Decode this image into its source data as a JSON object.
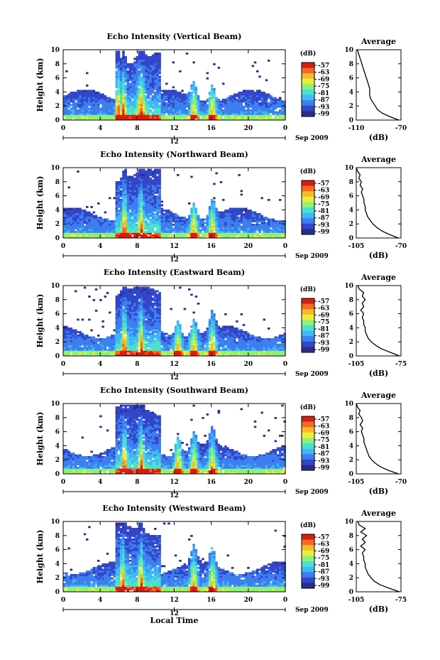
{
  "figure": {
    "xlabel_bottom": "Local Time",
    "date_label": "Sep 2009",
    "colorbar_unit": "(dB)",
    "colormap": [
      "#2a2e86",
      "#3346c9",
      "#3d7ff0",
      "#41b8f4",
      "#4be0d0",
      "#8ef07a",
      "#e8f03c",
      "#f7b82a",
      "#f56a1e",
      "#d61e12"
    ],
    "no_data_color": "#ffffff"
  },
  "chart_data": [
    {
      "type": "heatmap",
      "title": "Echo Intensity (Vertical Beam)",
      "ylabel": "Height (km)",
      "xlim": [
        0,
        24
      ],
      "ylim": [
        0,
        10
      ],
      "x_ticks": [
        "0",
        "4",
        "8",
        "12",
        "16",
        "20",
        "0"
      ],
      "y_ticks": [
        "0",
        "2",
        "4",
        "6",
        "8",
        "10"
      ],
      "secondary_x_label": "12",
      "colorbar_ticks": [
        "-57",
        "-63",
        "-69",
        "-75",
        "-81",
        "-87",
        "-93",
        "-99"
      ],
      "profile": {
        "title": "Average",
        "xlabel": "(dB)",
        "xlim": [
          -110,
          -70
        ],
        "x_ticks": [
          "-110",
          "-70"
        ],
        "heights": [
          0,
          0.5,
          1,
          1.5,
          2,
          2.5,
          3,
          3.5,
          4,
          4.5,
          5,
          5.5,
          6,
          6.5,
          7,
          7.5,
          8,
          8.5,
          9,
          9.5,
          10
        ],
        "values": [
          -72,
          -80,
          -87,
          -91,
          -93,
          -95,
          -97,
          -98,
          -98,
          -98,
          -99,
          -100,
          -101,
          -102,
          -103,
          -104,
          -105,
          -106,
          -107,
          -108,
          -109
        ]
      },
      "peaks": [
        5.8,
        6.4,
        8.3,
        14,
        16
      ]
    },
    {
      "type": "heatmap",
      "title": "Echo Intensity (Northward Beam)",
      "ylabel": "Height (km)",
      "xlim": [
        0,
        24
      ],
      "ylim": [
        0,
        10
      ],
      "x_ticks": [
        "0",
        "4",
        "8",
        "12",
        "16",
        "20",
        "0"
      ],
      "y_ticks": [
        "0",
        "2",
        "4",
        "6",
        "8",
        "10"
      ],
      "secondary_x_label": "12",
      "colorbar_ticks": [
        "-57",
        "-63",
        "-69",
        "-75",
        "-81",
        "-87",
        "-93",
        "-99"
      ],
      "profile": {
        "title": "Average",
        "xlabel": "(dB)",
        "xlim": [
          -105,
          -70
        ],
        "x_ticks": [
          "-105",
          "-70"
        ],
        "heights": [
          0,
          0.5,
          1,
          1.5,
          2,
          2.5,
          3,
          3.5,
          4,
          4.5,
          5,
          5.5,
          6,
          6.5,
          7,
          7.5,
          8,
          8.5,
          9,
          9.5,
          10
        ],
        "values": [
          -72,
          -79,
          -85,
          -89,
          -92,
          -94,
          -96,
          -97,
          -98,
          -98,
          -99,
          -99,
          -100,
          -101,
          -100,
          -102,
          -101,
          -103,
          -102,
          -104,
          -105
        ]
      },
      "peaks": [
        6.5,
        8.3,
        14,
        16
      ]
    },
    {
      "type": "heatmap",
      "title": "Echo Intensity (Eastward Beam)",
      "ylabel": "Height (km)",
      "xlim": [
        0,
        24
      ],
      "ylim": [
        0,
        10
      ],
      "x_ticks": [
        "0",
        "4",
        "8",
        "12",
        "16",
        "20",
        "0"
      ],
      "y_ticks": [
        "0",
        "2",
        "4",
        "6",
        "8",
        "10"
      ],
      "secondary_x_label": "12",
      "colorbar_ticks": [
        "-57",
        "-63",
        "-69",
        "-75",
        "-81",
        "-87",
        "-93",
        "-99"
      ],
      "profile": {
        "title": "Average",
        "xlabel": "(dB)",
        "xlim": [
          -105,
          -75
        ],
        "x_ticks": [
          "-105",
          "-75"
        ],
        "heights": [
          0,
          0.5,
          1,
          1.5,
          2,
          2.5,
          3,
          3.5,
          4,
          4.5,
          5,
          5.5,
          6,
          6.5,
          7,
          7.5,
          8,
          8.5,
          9,
          9.5,
          10
        ],
        "values": [
          -76,
          -82,
          -88,
          -92,
          -95,
          -97,
          -98,
          -99,
          -99,
          -100,
          -100,
          -101,
          -100,
          -102,
          -100,
          -101,
          -99,
          -101,
          -100,
          -103,
          -104
        ]
      },
      "peaks": [
        6.5,
        8.3,
        12.3,
        14,
        16
      ]
    },
    {
      "type": "heatmap",
      "title": "Echo Intensity (Southward Beam)",
      "ylabel": "Height (km)",
      "xlim": [
        0,
        24
      ],
      "ylim": [
        0,
        10
      ],
      "x_ticks": [
        "0",
        "4",
        "8",
        "12",
        "16",
        "20",
        "0"
      ],
      "y_ticks": [
        "0",
        "2",
        "4",
        "6",
        "8",
        "10"
      ],
      "secondary_x_label": "12",
      "colorbar_ticks": [
        "-57",
        "-63",
        "-69",
        "-75",
        "-81",
        "-87",
        "-93",
        "-99"
      ],
      "profile": {
        "title": "Average",
        "xlabel": "(dB)",
        "xlim": [
          -105,
          -70
        ],
        "x_ticks": [
          "-105",
          "-70"
        ],
        "heights": [
          0,
          0.5,
          1,
          1.5,
          2,
          2.5,
          3,
          3.5,
          4,
          4.5,
          5,
          5.5,
          6,
          6.5,
          7,
          7.5,
          8,
          8.5,
          9,
          9.5,
          10
        ],
        "values": [
          -72,
          -80,
          -86,
          -90,
          -93,
          -95,
          -96,
          -97,
          -98,
          -99,
          -99,
          -100,
          -101,
          -100,
          -102,
          -100,
          -101,
          -103,
          -102,
          -104,
          -105
        ]
      },
      "peaks": [
        6.5,
        8.3,
        12.3,
        14,
        16
      ]
    },
    {
      "type": "heatmap",
      "title": "Echo Intensity (Westward Beam)",
      "ylabel": "Height (km)",
      "xlim": [
        0,
        24
      ],
      "ylim": [
        0,
        10
      ],
      "x_ticks": [
        "0",
        "4",
        "8",
        "12",
        "16",
        "20",
        "0"
      ],
      "y_ticks": [
        "0",
        "2",
        "4",
        "6",
        "8",
        "10"
      ],
      "secondary_x_label": "12",
      "colorbar_ticks": [
        "-57",
        "-63",
        "-69",
        "-75",
        "-81",
        "-87",
        "-93",
        "-99"
      ],
      "profile": {
        "title": "Average",
        "xlabel": "(dB)",
        "xlim": [
          -105,
          -75
        ],
        "x_ticks": [
          "-105",
          "-75"
        ],
        "heights": [
          0,
          0.5,
          1,
          1.5,
          2,
          2.5,
          3,
          3.5,
          4,
          4.5,
          5,
          5.5,
          6,
          6.5,
          7,
          7.5,
          8,
          8.5,
          9,
          9.5,
          10
        ],
        "values": [
          -76,
          -83,
          -89,
          -93,
          -95,
          -97,
          -98,
          -99,
          -99,
          -100,
          -100,
          -101,
          -99,
          -102,
          -99,
          -101,
          -98,
          -102,
          -99,
          -103,
          -104
        ]
      },
      "peaks": [
        6.3,
        8.3,
        14,
        16
      ]
    }
  ]
}
